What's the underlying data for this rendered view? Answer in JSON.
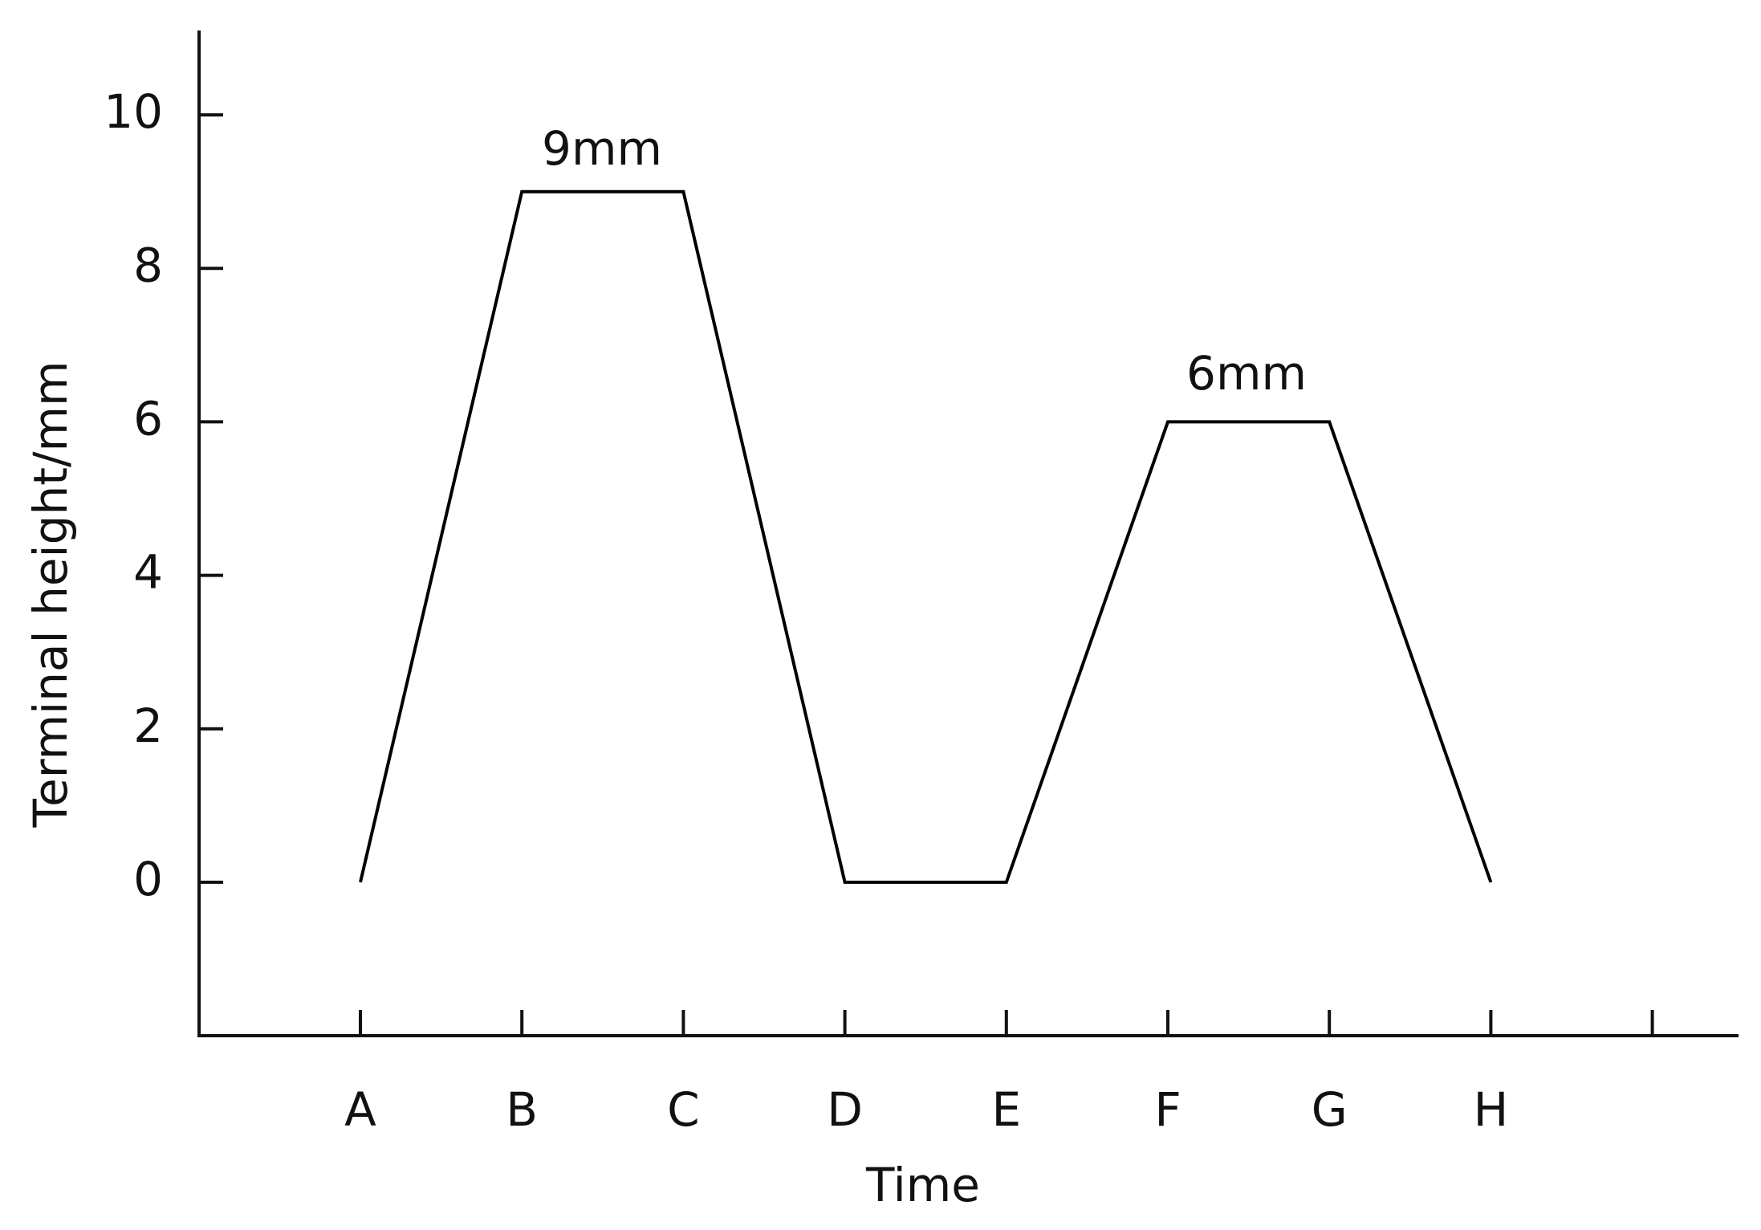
{
  "chart_data": {
    "type": "line",
    "x_label": "Time",
    "y_label": "Terminal height/mm",
    "categories": [
      "A",
      "B",
      "C",
      "D",
      "E",
      "F",
      "G",
      "H",
      null
    ],
    "values": [
      0,
      9,
      9,
      0,
      0,
      6,
      6,
      0,
      null
    ],
    "color": "#000000",
    "ylim": [
      -2,
      11.1
    ],
    "yticks": [
      0,
      2,
      4,
      6,
      8,
      10
    ],
    "annotations": [
      {
        "text": "9mm"
      },
      {
        "text": "6mm"
      }
    ]
  }
}
